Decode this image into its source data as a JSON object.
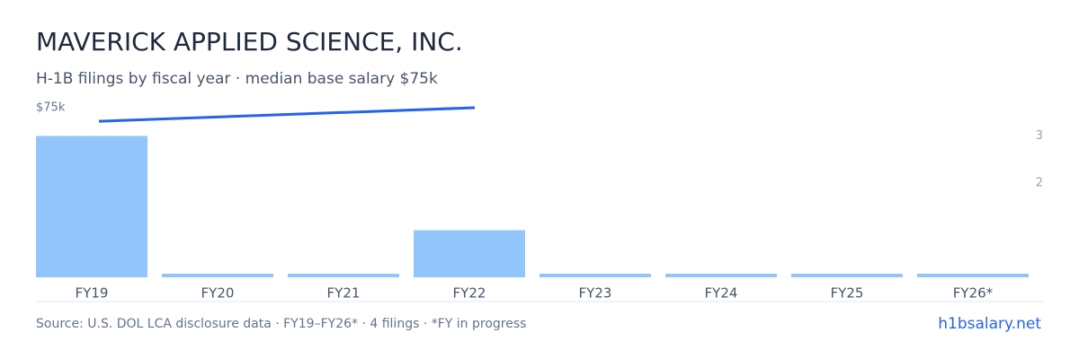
{
  "chart_data": {
    "type": "bar",
    "title": "MAVERICK APPLIED SCIENCE, INC.",
    "subtitle": "H-1B filings by fiscal year · median base salary $75k",
    "categories": [
      "FY19",
      "FY20",
      "FY21",
      "FY22",
      "FY23",
      "FY24",
      "FY25",
      "FY26*"
    ],
    "series": [
      {
        "name": "H-1B filings",
        "color": "#93c5fd",
        "axis": "y2",
        "values": [
          3,
          0,
          0,
          1,
          0,
          0,
          0,
          0
        ]
      },
      {
        "name": "Median base salary",
        "color": "#2563eb",
        "type": "line",
        "x": [
          "FY19",
          "FY22"
        ],
        "values": [
          69000,
          75000
        ]
      }
    ],
    "ylim": [
      0,
      75000
    ],
    "yticks": [
      {
        "value": 75000,
        "label": "$75k"
      }
    ],
    "y2lim": [
      0,
      3.6
    ],
    "y2ticks": [
      2,
      3
    ],
    "source": "Source: U.S. DOL LCA disclosure data · FY19–FY26* · 4 filings · *FY in progress",
    "brand": "h1bsalary.net"
  }
}
